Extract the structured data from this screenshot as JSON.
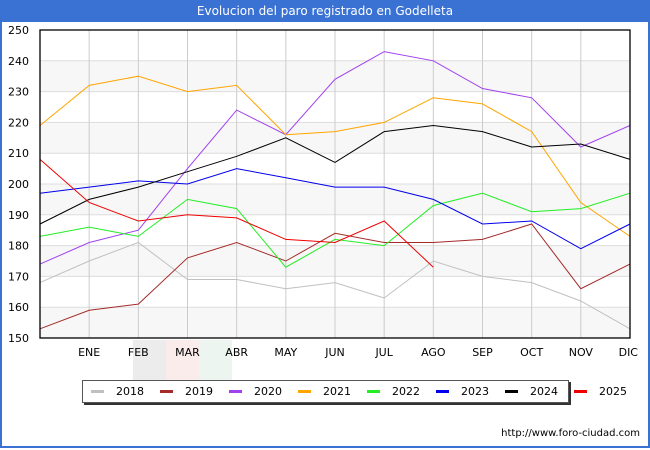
{
  "title": "Evolucion del paro registrado en Godelleta",
  "footer_url": "http://www.foro-ciudad.com",
  "chart_data": {
    "type": "line",
    "title": "Evolucion del paro registrado en Godelleta",
    "xlabel": "",
    "ylabel": "",
    "x": [
      "",
      "ENE",
      "FEB",
      "MAR",
      "ABR",
      "MAY",
      "JUN",
      "JUL",
      "AGO",
      "SEP",
      "OCT",
      "NOV",
      "DIC"
    ],
    "ylim": [
      150,
      250
    ],
    "yticks": [
      150,
      160,
      170,
      180,
      190,
      200,
      210,
      220,
      230,
      240,
      250
    ],
    "grid": true,
    "legend_position": "bottom",
    "series": [
      {
        "name": "2018",
        "color": "#c0c0c0",
        "values": [
          168,
          175,
          181,
          169,
          169,
          166,
          168,
          163,
          175,
          170,
          168,
          162,
          153
        ]
      },
      {
        "name": "2019",
        "color": "#a52a2a",
        "values": [
          153,
          159,
          161,
          176,
          181,
          175,
          184,
          181,
          181,
          182,
          187,
          166,
          174
        ]
      },
      {
        "name": "2020",
        "color": "#a040f0",
        "values": [
          174,
          181,
          185,
          205,
          224,
          216,
          234,
          243,
          240,
          231,
          228,
          212,
          219
        ]
      },
      {
        "name": "2021",
        "color": "#ffa500",
        "values": [
          219,
          232,
          235,
          230,
          232,
          216,
          217,
          220,
          228,
          226,
          217,
          194,
          183
        ]
      },
      {
        "name": "2022",
        "color": "#22ee22",
        "values": [
          183,
          186,
          183,
          195,
          192,
          173,
          182,
          180,
          193,
          197,
          191,
          192,
          197
        ]
      },
      {
        "name": "2023",
        "color": "#0000ee",
        "values": [
          197,
          199,
          201,
          200,
          205,
          202,
          199,
          199,
          195,
          187,
          188,
          179,
          187
        ]
      },
      {
        "name": "2024",
        "color": "#000000",
        "values": [
          187,
          195,
          199,
          204,
          209,
          215,
          207,
          217,
          219,
          217,
          212,
          213,
          208
        ]
      },
      {
        "name": "2025",
        "color": "#ee0000",
        "values": [
          208,
          194,
          188,
          190,
          189,
          182,
          181,
          188,
          173,
          null,
          null,
          null,
          null
        ]
      }
    ]
  }
}
